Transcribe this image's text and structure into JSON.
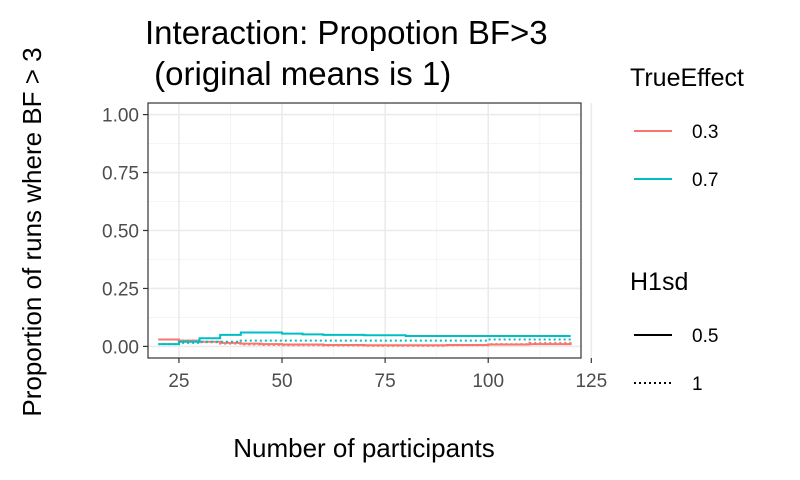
{
  "chart_data": {
    "type": "line",
    "title_lines": [
      "Interaction: Propotion BF>3",
      " (original means is 1)"
    ],
    "xlabel": "Number of participants",
    "ylabel": "Proportion of runs where BF > 3",
    "xlim": [
      17.5,
      122.5
    ],
    "ylim": [
      -0.05,
      1.05
    ],
    "xticks": [
      25,
      50,
      75,
      100,
      125
    ],
    "xtick_labels": [
      "25",
      "50",
      "75",
      "100",
      "125"
    ],
    "yticks": [
      0,
      0.25,
      0.5,
      0.75,
      1
    ],
    "ytick_labels": [
      "0.00",
      "0.25",
      "0.50",
      "0.75",
      "1.00"
    ],
    "grid": true,
    "legend_placement": "right",
    "legends": [
      {
        "title": "TrueEffect",
        "kind": "color",
        "items": [
          {
            "label": "0.3",
            "color": "#F8766D"
          },
          {
            "label": "0.7",
            "color": "#00BFC4"
          }
        ]
      },
      {
        "title": "H1sd",
        "kind": "linetype",
        "items": [
          {
            "label": "0.5",
            "linetype": "solid"
          },
          {
            "label": "1",
            "linetype": "dotted"
          }
        ]
      }
    ],
    "series": [
      {
        "TrueEffect": "0.3",
        "H1sd": "0.5",
        "color": "#F8766D",
        "linetype": "solid",
        "x": [
          20,
          25,
          30,
          35,
          40,
          45,
          50,
          60,
          70,
          80,
          90,
          100,
          110,
          120
        ],
        "y": [
          0.03,
          0.025,
          0.02,
          0.015,
          0.012,
          0.01,
          0.008,
          0.006,
          0.005,
          0.005,
          0.006,
          0.008,
          0.01,
          0.012
        ]
      },
      {
        "TrueEffect": "0.3",
        "H1sd": "1",
        "color": "#F8766D",
        "linetype": "dotted",
        "x": [
          20,
          25,
          30,
          35,
          40,
          45,
          50,
          60,
          70,
          80,
          90,
          100,
          110,
          120
        ],
        "y": [
          0.03,
          0.025,
          0.018,
          0.012,
          0.008,
          0.006,
          0.005,
          0.004,
          0.003,
          0.003,
          0.005,
          0.01,
          0.015,
          0.02
        ]
      },
      {
        "TrueEffect": "0.7",
        "H1sd": "0.5",
        "color": "#00BFC4",
        "linetype": "solid",
        "x": [
          20,
          25,
          30,
          35,
          40,
          45,
          50,
          55,
          60,
          70,
          80,
          90,
          100,
          110,
          120
        ],
        "y": [
          0.01,
          0.02,
          0.035,
          0.05,
          0.06,
          0.06,
          0.055,
          0.052,
          0.05,
          0.048,
          0.045,
          0.045,
          0.045,
          0.045,
          0.045
        ]
      },
      {
        "TrueEffect": "0.7",
        "H1sd": "1",
        "color": "#00BFC4",
        "linetype": "dotted",
        "x": [
          20,
          25,
          30,
          40,
          50,
          60,
          70,
          80,
          90,
          100,
          110,
          120
        ],
        "y": [
          0.01,
          0.015,
          0.02,
          0.025,
          0.025,
          0.025,
          0.025,
          0.025,
          0.025,
          0.03,
          0.03,
          0.03
        ]
      }
    ]
  }
}
